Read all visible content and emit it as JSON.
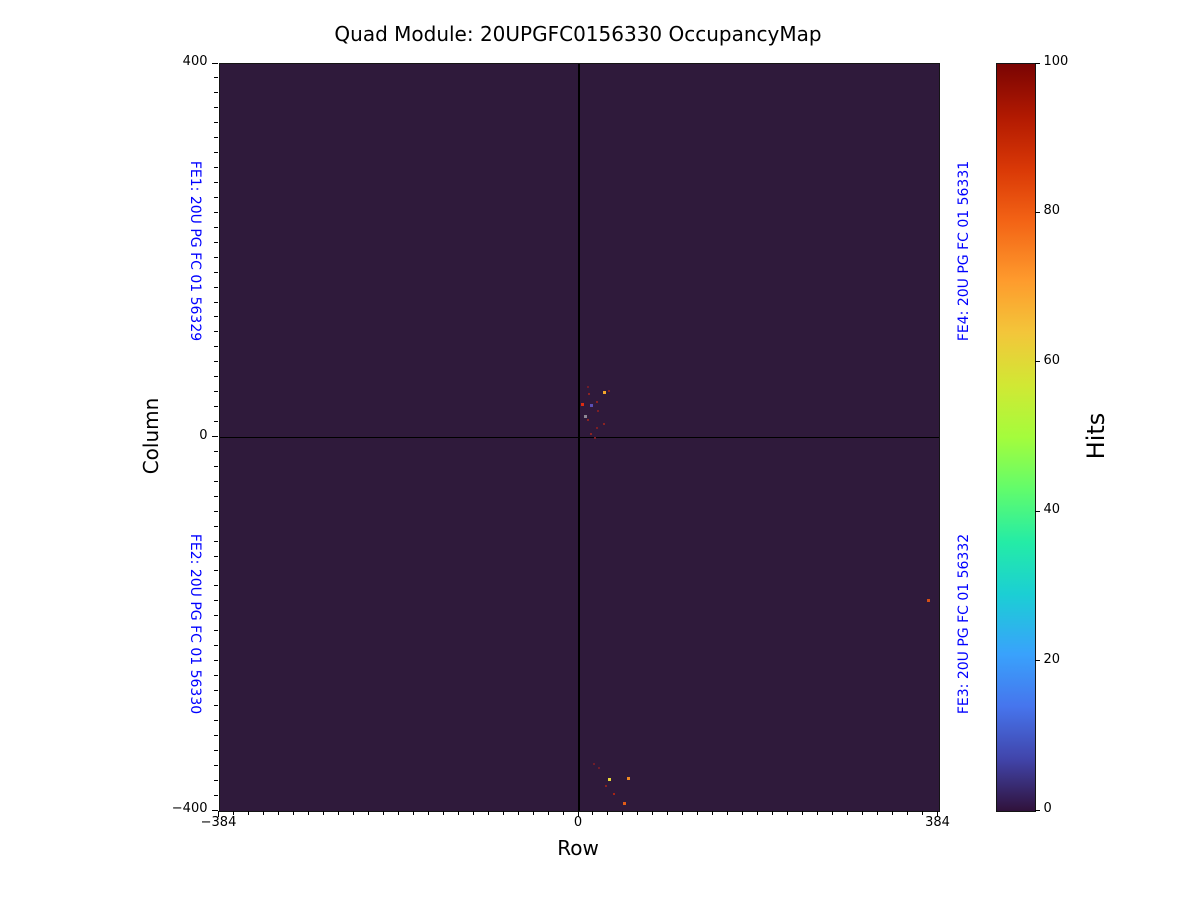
{
  "figure": {
    "background_color": "#ffffff"
  },
  "chart_data": {
    "type": "heatmap",
    "title": "Quad Module: 20UPGFC0156330 OccupancyMap",
    "xlabel": "Row",
    "ylabel": "Column",
    "xlim": [
      -384,
      384
    ],
    "ylim": [
      -400,
      400
    ],
    "x_ticks": [
      {
        "value": -384,
        "label": "−384"
      },
      {
        "value": 0,
        "label": "0"
      },
      {
        "value": 384,
        "label": "384"
      }
    ],
    "y_ticks": [
      {
        "value": 400,
        "label": "400"
      },
      {
        "value": 0,
        "label": "0"
      },
      {
        "value": -400,
        "label": "−400"
      }
    ],
    "minor_tick_step": 16,
    "grid": false,
    "legend": false,
    "background_hits": 0,
    "zero_color": "#2f1a3b",
    "crosshair": {
      "x": 0,
      "y": 0,
      "color": "#000000"
    },
    "colorbar": {
      "label": "Hits",
      "min": 0,
      "max": 100,
      "ticks": [
        0,
        20,
        40,
        60,
        80,
        100
      ],
      "colormap": "turbo",
      "stops": [
        [
          0.0,
          "#30123b"
        ],
        [
          0.07,
          "#4145ab"
        ],
        [
          0.14,
          "#4675ed"
        ],
        [
          0.21,
          "#39a2fc"
        ],
        [
          0.29,
          "#1bcfd4"
        ],
        [
          0.36,
          "#24eca6"
        ],
        [
          0.43,
          "#61fc6c"
        ],
        [
          0.5,
          "#a4fc3c"
        ],
        [
          0.57,
          "#d1e834"
        ],
        [
          0.64,
          "#f3c63a"
        ],
        [
          0.71,
          "#fe9b2d"
        ],
        [
          0.79,
          "#f36315"
        ],
        [
          0.86,
          "#d93806"
        ],
        [
          0.93,
          "#b11901"
        ],
        [
          1.0,
          "#7a0403"
        ]
      ]
    },
    "fe_labels": [
      {
        "text": "FE1: 20U PG FC 01 56329",
        "side": "left",
        "half": "top",
        "color": "#0000ff"
      },
      {
        "text": "FE2: 20U PG FC 01 56330",
        "side": "left",
        "half": "bottom",
        "color": "#0000ff"
      },
      {
        "text": "FE4: 20U PG FC 01 56331",
        "side": "right",
        "half": "top",
        "color": "#0000ff"
      },
      {
        "text": "FE3: 20U PG FC 01 56332",
        "side": "right",
        "half": "bottom",
        "color": "#0000ff"
      }
    ],
    "hot_pixels": [
      {
        "row": 10,
        "col": 54,
        "hits": 96,
        "color": "#6f1d2a",
        "size": 2
      },
      {
        "row": 27,
        "col": 48,
        "hits": 70,
        "color": "#f5a62b",
        "size": 3
      },
      {
        "row": 32,
        "col": 50,
        "hits": 98,
        "color": "#7d1f24",
        "size": 2
      },
      {
        "row": 11,
        "col": 47,
        "hits": 97,
        "color": "#8b2323",
        "size": 2
      },
      {
        "row": 4,
        "col": 35,
        "hits": 88,
        "color": "#dd2c12",
        "size": 3
      },
      {
        "row": 13,
        "col": 34,
        "hits": 10,
        "color": "#5a4fb4",
        "size": 3
      },
      {
        "row": 19,
        "col": 38,
        "hits": 97,
        "color": "#8b2323",
        "size": 2
      },
      {
        "row": 7,
        "col": 22,
        "hits": null,
        "color": "#8e8694",
        "size": 3
      },
      {
        "row": 10,
        "col": 19,
        "hits": 97,
        "color": "#8b2323",
        "size": 2
      },
      {
        "row": 20,
        "col": 28,
        "hits": 98,
        "color": "#7d1f24",
        "size": 2
      },
      {
        "row": 27,
        "col": 14,
        "hits": 97,
        "color": "#8b2323",
        "size": 2
      },
      {
        "row": 19,
        "col": 10,
        "hits": 98,
        "color": "#7d1f24",
        "size": 2
      },
      {
        "row": 13,
        "col": 4,
        "hits": 97,
        "color": "#8b2323",
        "size": 2
      },
      {
        "row": 17,
        "col": -1,
        "hits": 98,
        "color": "#7d1f24",
        "size": 2
      },
      {
        "row": 16,
        "col": -350,
        "hits": 96,
        "color": "#6f1d2a",
        "size": 2
      },
      {
        "row": 21,
        "col": -354,
        "hits": 96,
        "color": "#6f1d2a",
        "size": 2
      },
      {
        "row": 33,
        "col": -366,
        "hits": 62,
        "color": "#e9d83b",
        "size": 3
      },
      {
        "row": 53,
        "col": -365,
        "hits": 72,
        "color": "#ef8922",
        "size": 3
      },
      {
        "row": 29,
        "col": -373,
        "hits": 97,
        "color": "#8b2323",
        "size": 2
      },
      {
        "row": 37,
        "col": -382,
        "hits": 92,
        "color": "#a62416",
        "size": 2
      },
      {
        "row": 49,
        "col": -392,
        "hits": 78,
        "color": "#e25c17",
        "size": 3
      },
      {
        "row": 373,
        "col": -175,
        "hits": 80,
        "color": "#d34f16",
        "size": 3
      }
    ]
  }
}
